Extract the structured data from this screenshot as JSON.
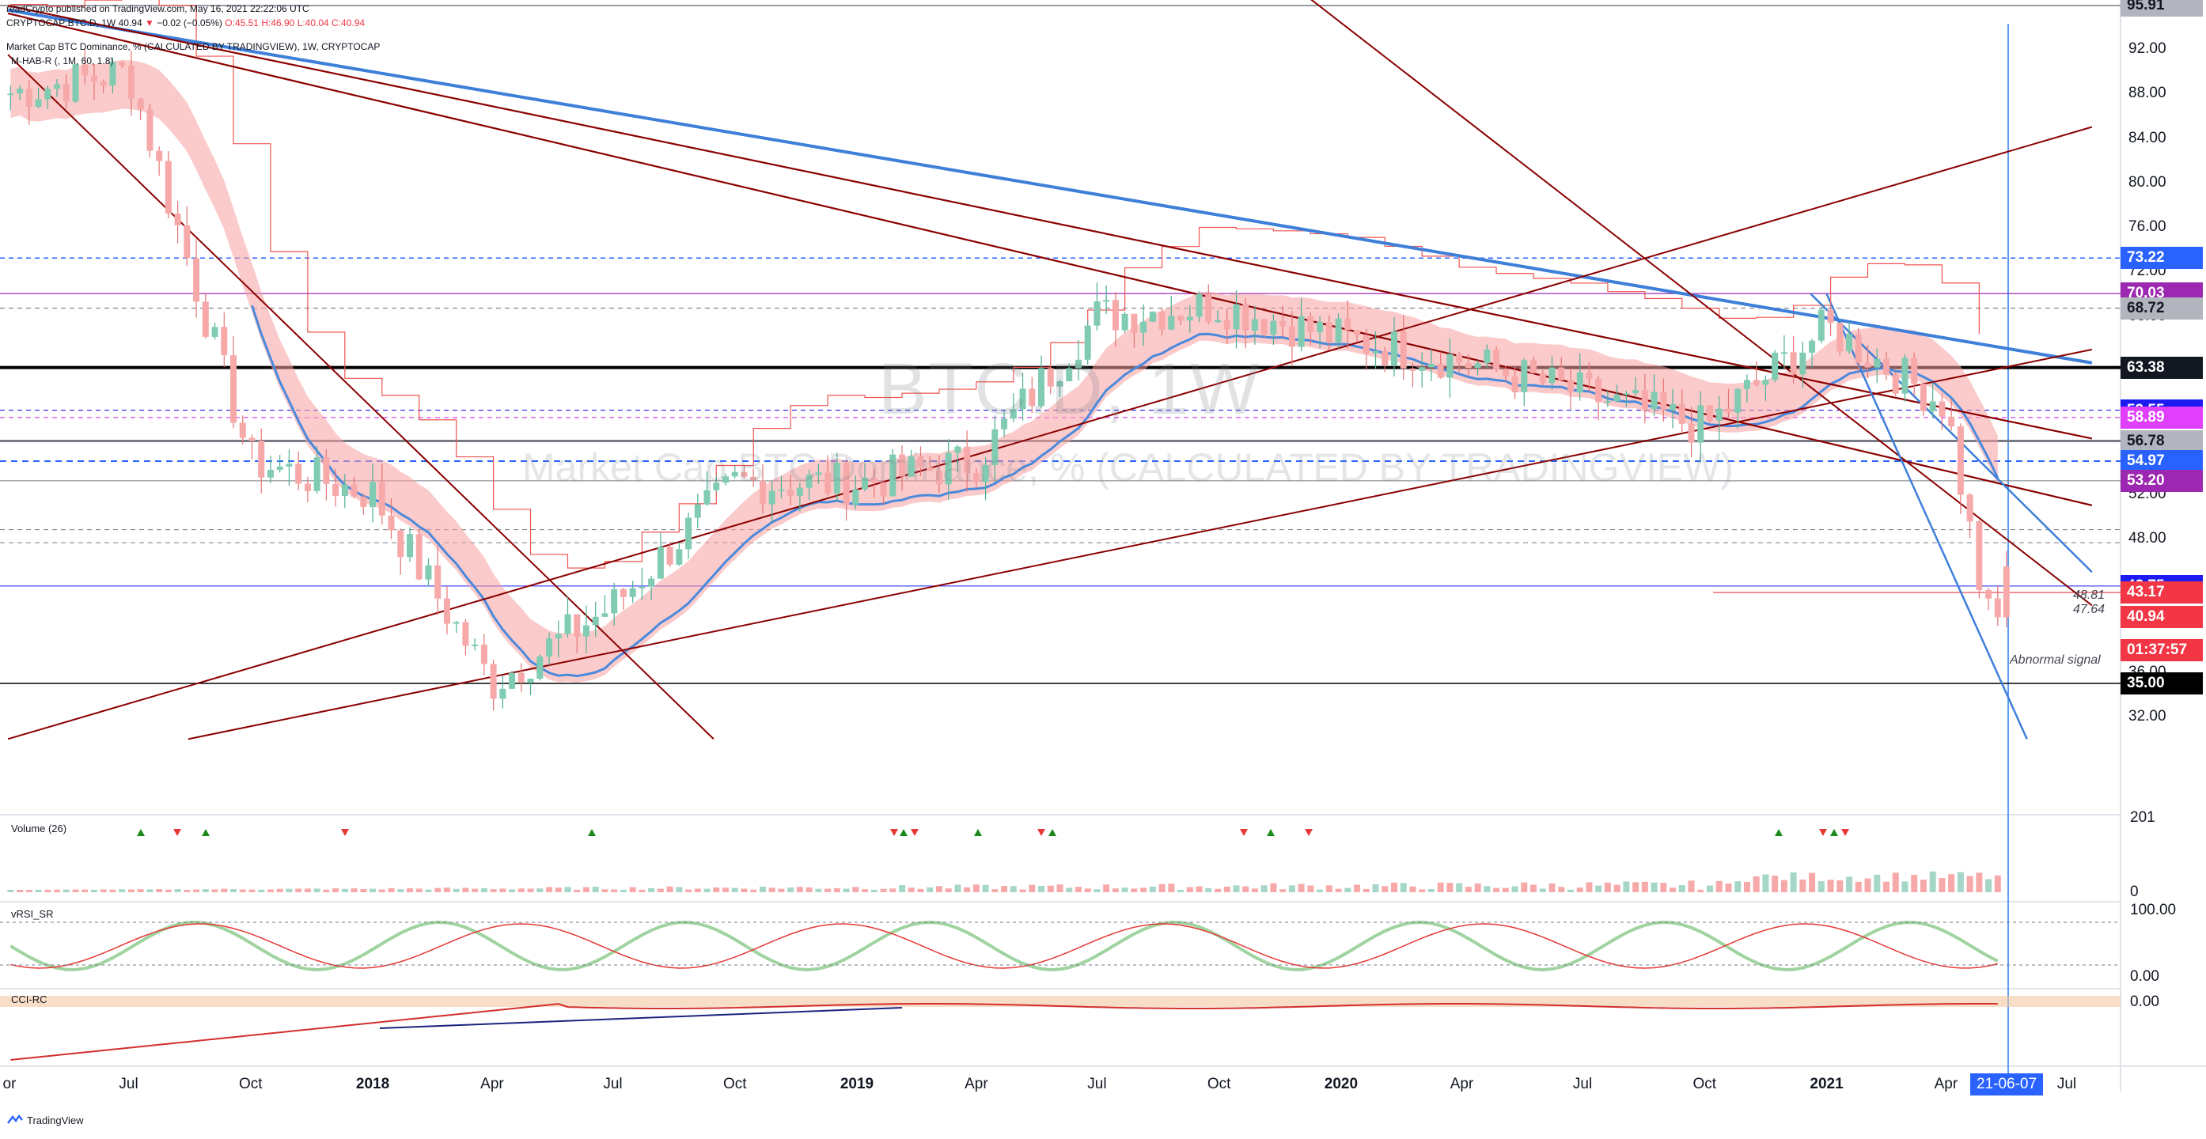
{
  "header": {
    "publisher": "readCrypto published on TradingView.com, May 16, 2021 22:22:06 UTC",
    "symbol": "CRYPTOCAP:BTC.D, 1W",
    "quote_arrow": "▼",
    "quote_change": "−0.02 (−0.05%)",
    "quote_values": "40.94",
    "ohlc": "O:45.51 H:46.90 L:40.04 C:40.94",
    "series_title": "Market Cap BTC Dominance, % (CALCULATED BY TRADINGVIEW), 1W, CRYPTOCAP",
    "indicator_title": "M-HAB-R (, 1M, 60, 1.8)"
  },
  "watermark": {
    "symbol": "BTC.D, 1W",
    "description": "Market Cap BTC Dominance, % (CALCULATED BY TRADINGVIEW)"
  },
  "panes": {
    "volume_label": "Volume (26)",
    "vrsi_label": "vRSI_SR",
    "cci_label": "CCI-RC",
    "volume_axis": [
      "201",
      "0"
    ],
    "vrsi_axis": [
      "100.00",
      "0.00"
    ],
    "cci_axis": [
      "0.00"
    ]
  },
  "price_axis": {
    "ticks": [
      "92.00",
      "88.00",
      "84.00",
      "80.00",
      "76.00",
      "72.00",
      "68.00",
      "52.00",
      "48.00",
      "36.00",
      "32.00"
    ],
    "tags": [
      {
        "value": "95.91",
        "color": "#b2b5be",
        "text_color": "#131722"
      },
      {
        "value": "73.22",
        "color": "#2962ff",
        "text_color": "#ffffff"
      },
      {
        "value": "70.03",
        "color": "#9c27b0",
        "text_color": "#ffffff"
      },
      {
        "value": "68.72",
        "color": "#b2b5be",
        "text_color": "#131722"
      },
      {
        "value": "63.38",
        "color": "#131722",
        "text_color": "#ffffff"
      },
      {
        "value": "59.55",
        "color": "#1c1cf0",
        "text_color": "#ffffff"
      },
      {
        "value": "58.89",
        "color": "#e040fb",
        "text_color": "#ffffff"
      },
      {
        "value": "56.78",
        "color": "#b2b5be",
        "text_color": "#131722"
      },
      {
        "value": "54.97",
        "color": "#2962ff",
        "text_color": "#ffffff"
      },
      {
        "value": "53.20",
        "color": "#9c27b0",
        "text_color": "#ffffff"
      },
      {
        "value": "43.75",
        "color": "#1c1cf0",
        "text_color": "#ffffff"
      },
      {
        "value": "43.17",
        "color": "#f23645",
        "text_color": "#ffffff"
      },
      {
        "value": "40.94",
        "color": "#f23645",
        "text_color": "#ffffff"
      },
      {
        "value": "01:37:57",
        "color": "#f23645",
        "text_color": "#ffffff"
      },
      {
        "value": "35.00",
        "color": "#000000",
        "text_color": "#ffffff"
      }
    ],
    "line_notes": [
      "48.81",
      "47.64",
      "Abnormal signal"
    ]
  },
  "time_axis": {
    "labels": [
      "or",
      "Jul",
      "Oct",
      "2018",
      "Apr",
      "Jul",
      "Oct",
      "2019",
      "Apr",
      "Jul",
      "Oct",
      "2020",
      "Apr",
      "Jul",
      "Oct",
      "2021",
      "Apr",
      "Jul"
    ],
    "cursor_label": "21-06-07"
  },
  "footer": {
    "brand": "TradingView"
  },
  "colors": {
    "up": "#26a69a",
    "down": "#ef5350",
    "candle_up": "#80cbb2",
    "candle_down": "#f7a9a9",
    "channel_fill": "#f7a1a1",
    "blue_line": "#4a89dc",
    "trend_dark_red": "#8b0000"
  },
  "chart_data": {
    "type": "candlestick",
    "title": "Market Cap BTC Dominance, % (CALCULATED BY TRADINGVIEW), 1W, CRYPTOCAP",
    "x": [
      "2017-04",
      "2017-07",
      "2017-10",
      "2018-01",
      "2018-04",
      "2018-07",
      "2018-10",
      "2019-01",
      "2019-04",
      "2019-07",
      "2019-10",
      "2020-01",
      "2020-04",
      "2020-07",
      "2020-10",
      "2021-01",
      "2021-04",
      "2021-05"
    ],
    "series": [
      {
        "values": [
          88,
          90,
          55,
          52,
          35,
          42,
          53,
          53,
          55,
          68,
          69,
          66,
          64,
          61,
          58,
          67,
          60,
          41
        ]
      }
    ],
    "last": {
      "open": 45.51,
      "high": 46.9,
      "low": 40.04,
      "close": 40.94
    },
    "ylim": [
      30,
      97
    ],
    "horizontal_levels": [
      95.91,
      73.22,
      70.03,
      68.72,
      63.38,
      59.55,
      58.89,
      56.78,
      54.97,
      53.2,
      48.81,
      47.64,
      43.75,
      43.17,
      35.0
    ]
  }
}
